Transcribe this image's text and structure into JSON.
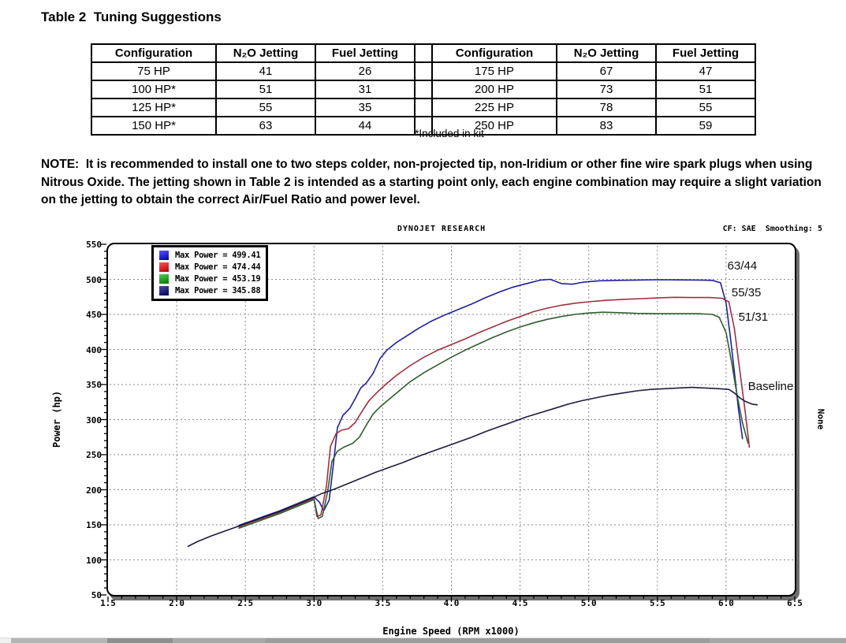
{
  "document": {
    "title": "Table 2  Tuning Suggestions",
    "table": {
      "headers": [
        "Configuration",
        "N₂O Jetting",
        "Fuel Jetting",
        "",
        "Configuration",
        "N₂O Jetting",
        "Fuel Jetting"
      ],
      "rows": [
        [
          "75 HP",
          "41",
          "26",
          "",
          "175 HP",
          "67",
          "47"
        ],
        [
          "100 HP*",
          "51",
          "31",
          "",
          "200 HP",
          "73",
          "51"
        ],
        [
          "125 HP*",
          "55",
          "35",
          "",
          "225 HP",
          "78",
          "55"
        ],
        [
          "150 HP*",
          "63",
          "44",
          "",
          "250 HP",
          "83",
          "59"
        ]
      ],
      "footnote": "*Included in kit"
    },
    "note": "NOTE:  It is recommended to install one to two steps colder, non-projected tip, non-Iridium or other fine wire spark plugs when using Nitrous Oxide. The jetting shown in Table 2 is intended as a starting point only, each engine combination may require a slight variation on the jetting to obtain the correct Air/Fuel Ratio and power level."
  },
  "chart_data": {
    "type": "line",
    "title": "DYNOJET RESEARCH",
    "corner_note": "CF: SAE  Smoothing: 5",
    "xlabel": "Engine Speed (RPM x1000)",
    "ylabel": "Power (hp)",
    "right_side_label": "None",
    "xlim": [
      1.5,
      6.5
    ],
    "ylim": [
      50,
      550
    ],
    "xticks": [
      "1.5",
      "2.0",
      "2.5",
      "3.0",
      "3.5",
      "4.0",
      "4.5",
      "5.0",
      "5.5",
      "6.0",
      "6.5"
    ],
    "yticks": [
      "50",
      "100",
      "150",
      "200",
      "250",
      "300",
      "350",
      "400",
      "450",
      "500",
      "550"
    ],
    "grid": "dashed",
    "legend_position": "top-left",
    "legend": [
      {
        "label": "Max Power = 499.41",
        "swatch": [
          "#5555ff",
          "#0000b4"
        ]
      },
      {
        "label": "Max Power = 474.44",
        "swatch": [
          "#ff5555",
          "#b40000"
        ]
      },
      {
        "label": "Max Power = 453.19",
        "swatch": [
          "#55cc55",
          "#007700"
        ]
      },
      {
        "label": "Max Power = 345.88",
        "swatch": [
          "#4c4ca0",
          "#000060"
        ]
      }
    ],
    "annotations": [
      {
        "text": "63/44",
        "x": 6.01,
        "y": 519
      },
      {
        "text": "55/35",
        "x": 6.04,
        "y": 480
      },
      {
        "text": "51/31",
        "x": 6.09,
        "y": 446
      },
      {
        "text": "Baseline",
        "x": 6.16,
        "y": 347
      }
    ],
    "series": [
      {
        "name": "63/44",
        "max_power": 499.41,
        "color": "#20209b",
        "points": [
          [
            2.45,
            149
          ],
          [
            2.55,
            156
          ],
          [
            2.65,
            163
          ],
          [
            2.75,
            170
          ],
          [
            2.85,
            178
          ],
          [
            2.95,
            186
          ],
          [
            3.0,
            190
          ],
          [
            3.04,
            182
          ],
          [
            3.07,
            170
          ],
          [
            3.11,
            185
          ],
          [
            3.14,
            235
          ],
          [
            3.17,
            288
          ],
          [
            3.21,
            306
          ],
          [
            3.26,
            316
          ],
          [
            3.3,
            330
          ],
          [
            3.34,
            345
          ],
          [
            3.38,
            352
          ],
          [
            3.43,
            366
          ],
          [
            3.48,
            387
          ],
          [
            3.53,
            399
          ],
          [
            3.6,
            410
          ],
          [
            3.68,
            420
          ],
          [
            3.76,
            430
          ],
          [
            3.85,
            440
          ],
          [
            3.95,
            449
          ],
          [
            4.05,
            457
          ],
          [
            4.15,
            465
          ],
          [
            4.25,
            474
          ],
          [
            4.35,
            482
          ],
          [
            4.45,
            489
          ],
          [
            4.55,
            494
          ],
          [
            4.65,
            499
          ],
          [
            4.72,
            500
          ],
          [
            4.8,
            494
          ],
          [
            4.88,
            493
          ],
          [
            4.96,
            496
          ],
          [
            5.08,
            498
          ],
          [
            5.2,
            498.5
          ],
          [
            5.35,
            499
          ],
          [
            5.5,
            499.4
          ],
          [
            5.65,
            499.2
          ],
          [
            5.8,
            499
          ],
          [
            5.9,
            498.5
          ],
          [
            5.96,
            495
          ],
          [
            6.0,
            466
          ],
          [
            6.03,
            420
          ],
          [
            6.06,
            368
          ],
          [
            6.09,
            315
          ],
          [
            6.12,
            272
          ]
        ]
      },
      {
        "name": "55/35",
        "max_power": 474.44,
        "color": "#9e3040",
        "points": [
          [
            2.45,
            147
          ],
          [
            2.55,
            154
          ],
          [
            2.65,
            161
          ],
          [
            2.75,
            168
          ],
          [
            2.85,
            176
          ],
          [
            2.95,
            184
          ],
          [
            3.0,
            188
          ],
          [
            3.02,
            162
          ],
          [
            3.05,
            164
          ],
          [
            3.09,
            205
          ],
          [
            3.12,
            262
          ],
          [
            3.16,
            280
          ],
          [
            3.2,
            285
          ],
          [
            3.25,
            287
          ],
          [
            3.3,
            296
          ],
          [
            3.35,
            312
          ],
          [
            3.4,
            327
          ],
          [
            3.46,
            339
          ],
          [
            3.52,
            350
          ],
          [
            3.6,
            363
          ],
          [
            3.7,
            377
          ],
          [
            3.8,
            389
          ],
          [
            3.9,
            399
          ],
          [
            4.0,
            407
          ],
          [
            4.1,
            415
          ],
          [
            4.2,
            424
          ],
          [
            4.3,
            432
          ],
          [
            4.4,
            440
          ],
          [
            4.5,
            447
          ],
          [
            4.6,
            454
          ],
          [
            4.7,
            459
          ],
          [
            4.8,
            463
          ],
          [
            4.9,
            466
          ],
          [
            5.0,
            468
          ],
          [
            5.12,
            470
          ],
          [
            5.25,
            471.5
          ],
          [
            5.38,
            472.5
          ],
          [
            5.5,
            473.5
          ],
          [
            5.62,
            474.4
          ],
          [
            5.75,
            474
          ],
          [
            5.88,
            474
          ],
          [
            5.97,
            473
          ],
          [
            6.02,
            468
          ],
          [
            6.06,
            430
          ],
          [
            6.1,
            370
          ],
          [
            6.14,
            310
          ],
          [
            6.17,
            260
          ]
        ]
      },
      {
        "name": "51/31",
        "max_power": 453.19,
        "color": "#2e5e30",
        "points": [
          [
            2.45,
            145
          ],
          [
            2.55,
            152
          ],
          [
            2.65,
            159
          ],
          [
            2.75,
            166
          ],
          [
            2.85,
            174
          ],
          [
            2.95,
            182
          ],
          [
            3.0,
            186
          ],
          [
            3.03,
            159
          ],
          [
            3.06,
            162
          ],
          [
            3.1,
            198
          ],
          [
            3.13,
            240
          ],
          [
            3.17,
            255
          ],
          [
            3.22,
            261
          ],
          [
            3.28,
            266
          ],
          [
            3.33,
            275
          ],
          [
            3.38,
            292
          ],
          [
            3.43,
            308
          ],
          [
            3.48,
            318
          ],
          [
            3.54,
            328
          ],
          [
            3.62,
            341
          ],
          [
            3.7,
            354
          ],
          [
            3.8,
            367
          ],
          [
            3.9,
            378
          ],
          [
            4.0,
            389
          ],
          [
            4.1,
            399
          ],
          [
            4.2,
            408
          ],
          [
            4.3,
            417
          ],
          [
            4.4,
            425
          ],
          [
            4.5,
            432
          ],
          [
            4.6,
            438
          ],
          [
            4.7,
            443
          ],
          [
            4.8,
            447
          ],
          [
            4.9,
            450
          ],
          [
            5.0,
            452
          ],
          [
            5.1,
            453.2
          ],
          [
            5.22,
            452.5
          ],
          [
            5.35,
            451.5
          ],
          [
            5.5,
            451
          ],
          [
            5.65,
            451
          ],
          [
            5.8,
            451
          ],
          [
            5.9,
            450
          ],
          [
            5.95,
            446
          ],
          [
            6.0,
            424
          ],
          [
            6.04,
            382
          ],
          [
            6.08,
            335
          ],
          [
            6.12,
            295
          ],
          [
            6.16,
            266
          ]
        ]
      },
      {
        "name": "Baseline",
        "max_power": 345.88,
        "color": "#1c1c3c",
        "points": [
          [
            2.08,
            119
          ],
          [
            2.15,
            126
          ],
          [
            2.25,
            134
          ],
          [
            2.35,
            141
          ],
          [
            2.45,
            148
          ],
          [
            2.55,
            155
          ],
          [
            2.65,
            162
          ],
          [
            2.75,
            169
          ],
          [
            2.85,
            177
          ],
          [
            2.95,
            185
          ],
          [
            3.05,
            194
          ],
          [
            3.15,
            201
          ],
          [
            3.25,
            209
          ],
          [
            3.35,
            217
          ],
          [
            3.45,
            225
          ],
          [
            3.55,
            232
          ],
          [
            3.65,
            239
          ],
          [
            3.75,
            247
          ],
          [
            3.85,
            254
          ],
          [
            3.95,
            261
          ],
          [
            4.05,
            268
          ],
          [
            4.15,
            275
          ],
          [
            4.25,
            283
          ],
          [
            4.35,
            290
          ],
          [
            4.45,
            297
          ],
          [
            4.55,
            304
          ],
          [
            4.65,
            310
          ],
          [
            4.75,
            316
          ],
          [
            4.85,
            322
          ],
          [
            4.95,
            327
          ],
          [
            5.05,
            331
          ],
          [
            5.15,
            335
          ],
          [
            5.25,
            338
          ],
          [
            5.35,
            341
          ],
          [
            5.45,
            343
          ],
          [
            5.55,
            344
          ],
          [
            5.65,
            345
          ],
          [
            5.75,
            345.9
          ],
          [
            5.85,
            345
          ],
          [
            5.95,
            344
          ],
          [
            6.02,
            343
          ],
          [
            6.06,
            338
          ],
          [
            6.1,
            331
          ],
          [
            6.14,
            326
          ],
          [
            6.19,
            322
          ],
          [
            6.23,
            321
          ]
        ]
      }
    ]
  }
}
